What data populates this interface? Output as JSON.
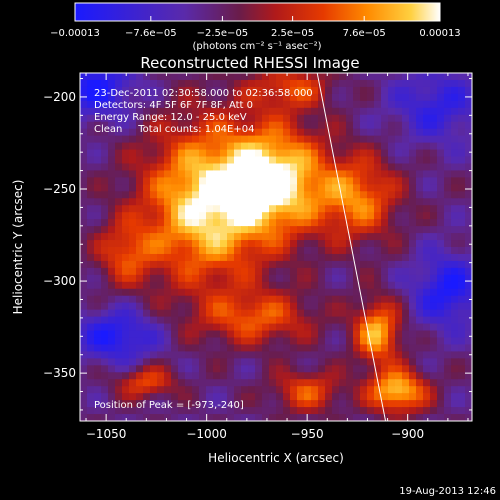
{
  "chart_data": {
    "type": "heatmap",
    "title": "Reconstructed RHESSI Image",
    "xlabel": "Heliocentric X (arcsec)",
    "ylabel": "Heliocentric Y (arcsec)",
    "xlim": [
      -1063,
      -868
    ],
    "ylim": [
      -376,
      -187
    ],
    "x_ticks": [
      {
        "value": -1050,
        "label": "−1050"
      },
      {
        "value": -1000,
        "label": "−1000"
      },
      {
        "value": -950,
        "label": "−950"
      },
      {
        "value": -900,
        "label": "−900"
      }
    ],
    "y_ticks": [
      {
        "value": -200,
        "label": "−200"
      },
      {
        "value": -250,
        "label": "−250"
      },
      {
        "value": -300,
        "label": "−300"
      },
      {
        "value": -350,
        "label": "−350"
      }
    ],
    "colorbar": {
      "min": -0.00013,
      "max": 0.00013,
      "colors": [
        "#1a1aff",
        "#5a2aaa",
        "#6a1c4a",
        "#b01a1a",
        "#e63a00",
        "#ff8a00",
        "#ffd040",
        "#ffffff"
      ],
      "ticks": [
        {
          "value": -0.00013,
          "label": "−0.00013"
        },
        {
          "value": -7.6e-05,
          "label": "−7.6e−05"
        },
        {
          "value": -2.5e-05,
          "label": "−2.5e−05"
        },
        {
          "value": 2.5e-05,
          "label": "2.5e−05"
        },
        {
          "value": 7.6e-05,
          "label": "7.6e−05"
        },
        {
          "value": 0.00013,
          "label": "0.00013"
        }
      ],
      "unit_label": "(photons cm⁻² s⁻¹ asec⁻²)"
    },
    "annotations": [
      "23-Dec-2011 02:30:58.000 to 02:36:58.000",
      "Detectors: 4F 5F 6F 7F 8F, Att 0",
      "Energy Range: 12.0 - 25.0 keV",
      "Clean     Total counts: 1.04E+04"
    ],
    "peak_label": "Position of Peak = [-973,-240]",
    "limb_line": {
      "x1": -945,
      "y1": -187,
      "x2": -911,
      "y2": -376
    },
    "sources": [
      {
        "x": -1000,
        "y": -258,
        "sx": 22,
        "sy": 30,
        "amp": 1.05
      },
      {
        "x": -965,
        "y": -245,
        "sx": 17,
        "sy": 20,
        "amp": 1.0
      },
      {
        "x": -925,
        "y": -255,
        "sx": 14,
        "sy": 16,
        "amp": 0.7
      },
      {
        "x": -915,
        "y": -328,
        "sx": 8,
        "sy": 12,
        "amp": 0.85
      },
      {
        "x": -905,
        "y": -360,
        "sx": 10,
        "sy": 8,
        "amp": 0.95
      },
      {
        "x": -1040,
        "y": -285,
        "sx": 10,
        "sy": 12,
        "amp": 0.5
      },
      {
        "x": -1030,
        "y": -355,
        "sx": 10,
        "sy": 6,
        "amp": 0.55
      },
      {
        "x": -975,
        "y": -320,
        "sx": 20,
        "sy": 10,
        "amp": 0.55
      },
      {
        "x": -958,
        "y": -195,
        "sx": 14,
        "sy": 8,
        "amp": 0.5
      },
      {
        "x": -950,
        "y": -360,
        "sx": 12,
        "sy": 8,
        "amp": 0.55
      },
      {
        "x": -1055,
        "y": -195,
        "sx": 14,
        "sy": 12,
        "amp": -0.6
      },
      {
        "x": -885,
        "y": -205,
        "sx": 16,
        "sy": 14,
        "amp": -0.45
      },
      {
        "x": -880,
        "y": -305,
        "sx": 12,
        "sy": 14,
        "amp": -0.6
      },
      {
        "x": -1045,
        "y": -330,
        "sx": 14,
        "sy": 10,
        "amp": -0.6
      }
    ]
  },
  "footer": {
    "timestamp": "19-Aug-2013 12:46"
  }
}
